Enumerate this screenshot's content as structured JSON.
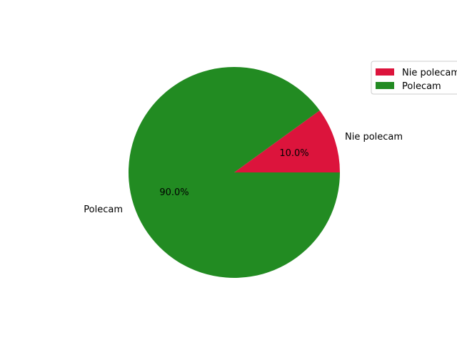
{
  "chart_data": {
    "type": "pie",
    "categories": [
      "Nie polecam",
      "Polecam"
    ],
    "values": [
      10.0,
      90.0
    ],
    "percent_labels": [
      "10.0%",
      "90.0%"
    ],
    "colors": [
      "#dc143c",
      "#228b22"
    ],
    "start_angle_deg": 0,
    "direction": "counterclockwise",
    "legend": {
      "placement": "top-right",
      "entries": [
        "Nie polecam",
        "Polecam"
      ]
    }
  }
}
